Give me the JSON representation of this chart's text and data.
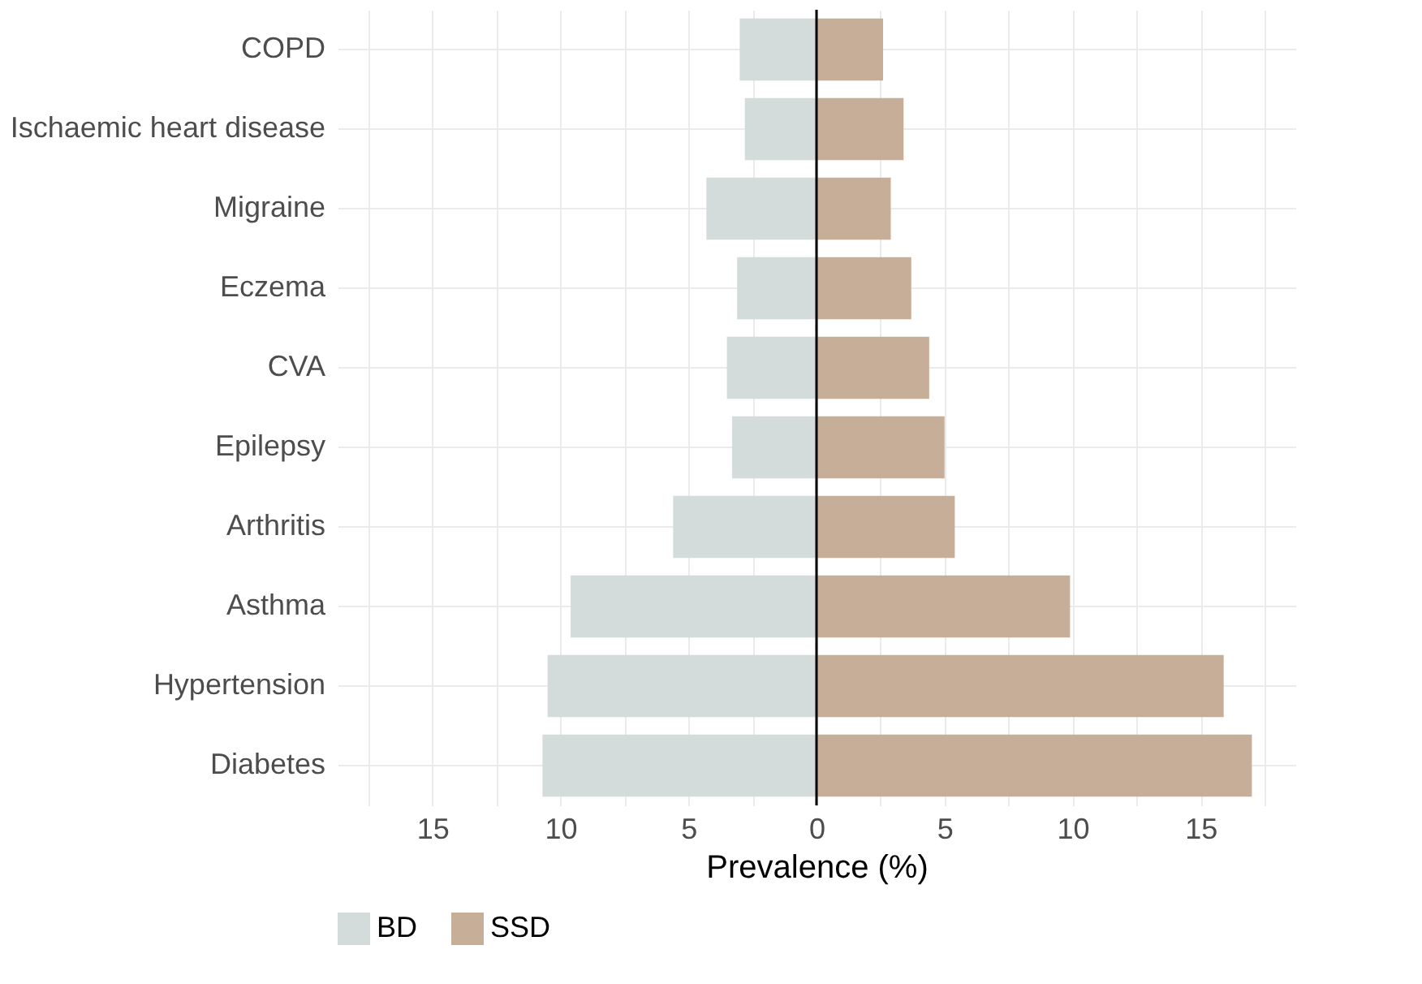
{
  "chart_data": {
    "type": "bar",
    "orientation": "horizontal",
    "xlabel": "Prevalence (%)",
    "categories": [
      "COPD",
      "Ischaemic heart disease",
      "Migraine",
      "Eczema",
      "CVA",
      "Epilepsy",
      "Arthritis",
      "Asthma",
      "Hypertension",
      "Diabetes"
    ],
    "series": [
      {
        "name": "BD",
        "color": "#d3dcda",
        "values": [
          -3.0,
          -2.8,
          -4.3,
          -3.1,
          -3.5,
          -3.3,
          -5.6,
          -9.6,
          -10.5,
          -10.7
        ]
      },
      {
        "name": "SSD",
        "color": "#c7ae99",
        "values": [
          2.6,
          3.4,
          2.9,
          3.7,
          4.4,
          5.0,
          5.4,
          9.9,
          15.9,
          17.0
        ]
      }
    ],
    "xlim": [
      -18.7,
      18.7
    ],
    "xticks": [
      {
        "value": -17.5,
        "label": null
      },
      {
        "value": -15,
        "label": "15"
      },
      {
        "value": -12.5,
        "label": null
      },
      {
        "value": -10,
        "label": "10"
      },
      {
        "value": -7.5,
        "label": null
      },
      {
        "value": -5,
        "label": "5"
      },
      {
        "value": -2.5,
        "label": null
      },
      0,
      {
        "value": 2.5,
        "label": null
      },
      5,
      {
        "value": 7.5,
        "label": null
      },
      10,
      {
        "value": 12.5,
        "label": null
      },
      15,
      {
        "value": 17.5,
        "label": null
      }
    ],
    "ref_lines": [
      {
        "axis": "x",
        "value": 0,
        "label": null,
        "color": "#000000"
      }
    ],
    "stacked": true,
    "grid": true,
    "legend": "bottom"
  }
}
